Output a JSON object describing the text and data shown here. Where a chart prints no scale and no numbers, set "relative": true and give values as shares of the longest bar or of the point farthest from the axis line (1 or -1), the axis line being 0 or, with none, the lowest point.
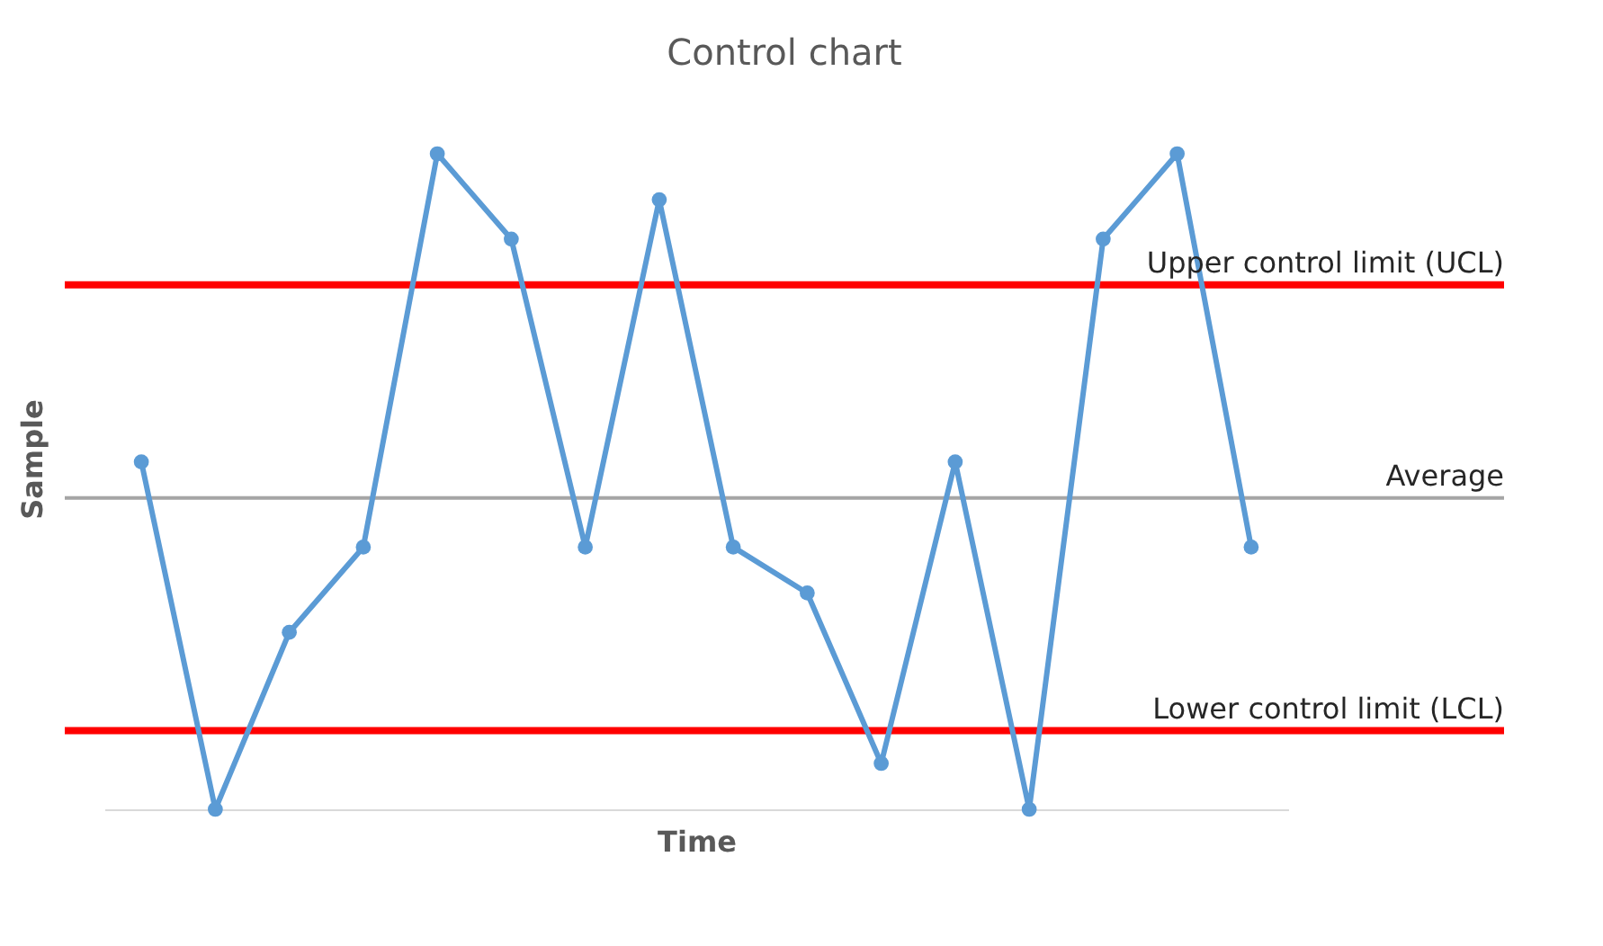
{
  "chart_data": {
    "type": "line",
    "title": "Control chart",
    "xlabel": "Time",
    "ylabel": "Sample",
    "relative": true,
    "categories": [
      null,
      null,
      null,
      null,
      null,
      null,
      null,
      null,
      null,
      null,
      null,
      null,
      null,
      null,
      null,
      null
    ],
    "series": [
      {
        "color": "#5b9bd5",
        "values": [
          0.53,
          0,
          0.27,
          0.4,
          1,
          0.87,
          0.4,
          0.93,
          0.4,
          0.33,
          0.07,
          0.53,
          0,
          0.87,
          1,
          0.4
        ]
      }
    ],
    "marker": "circle",
    "line_style": "solid",
    "ref_lines": [
      {
        "axis": "y",
        "value": 0.8,
        "label": "Upper control limit (UCL)",
        "color": "#ff0000"
      },
      {
        "axis": "y",
        "value": 0.475,
        "label": "Average",
        "color": "#a5a5a5"
      },
      {
        "axis": "y",
        "value": 0.12,
        "label": "Lower control limit (LCL)",
        "color": "#ff0000"
      }
    ]
  }
}
